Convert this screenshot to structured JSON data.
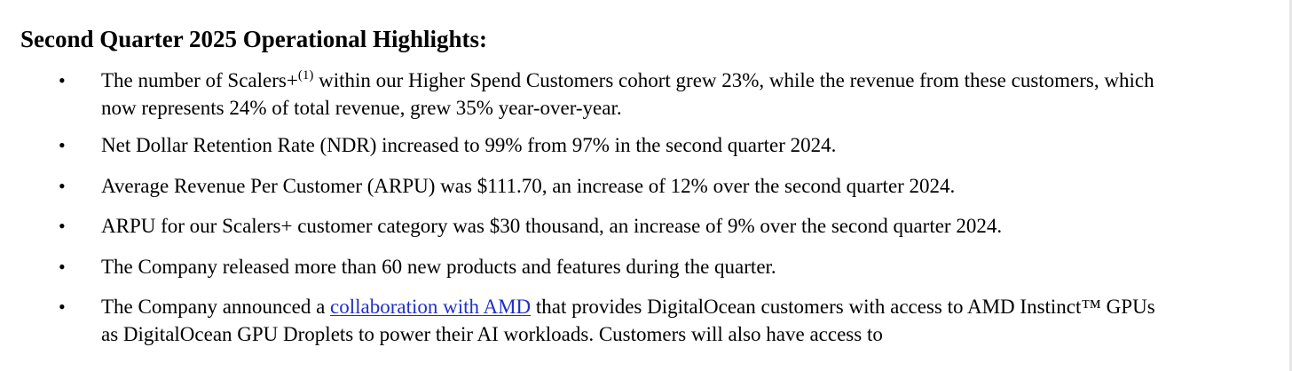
{
  "heading": "Second Quarter 2025 Operational Highlights:",
  "bullet_symbol": "•",
  "bullets": [
    {
      "line1_before_sup": "The number of Scalers+",
      "line1_sup": "(1)",
      "line1_after_sup": " within our Higher Spend Customers cohort grew 23%, while the revenue from these customers, which",
      "line2": "now represents 24% of total revenue, grew 35% year-over-year."
    },
    {
      "text": "Net Dollar Retention Rate (NDR) increased to 99% from 97% in the second quarter 2024."
    },
    {
      "text": "Average Revenue Per Customer (ARPU) was $111.70, an increase of 12% over the second quarter 2024."
    },
    {
      "text": "ARPU for our Scalers+ customer category was $30 thousand, an increase of 9% over the second quarter 2024."
    },
    {
      "text": "The Company released more than 60 new products and features during the quarter."
    },
    {
      "line1_before_link": "The Company announced a ",
      "link_text": "collaboration with AMD",
      "line1_after_link": " that provides DigitalOcean customers with access to AMD Instinct™ GPUs",
      "line2": "as DigitalOcean GPU Droplets to power their AI workloads. Customers will also have access to"
    }
  ],
  "colors": {
    "text": "#000000",
    "link": "#1f2fc9",
    "background": "#ffffff"
  }
}
